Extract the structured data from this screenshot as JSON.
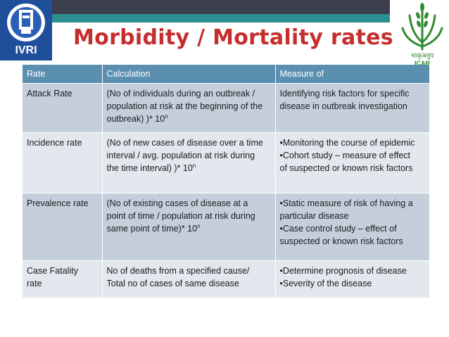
{
  "header": {
    "left_logo_text": "IVRI",
    "right_logo_text": "ICAR",
    "right_logo_hindi": "भाकृअनुप"
  },
  "title": "Morbidity / Mortality rates",
  "table": {
    "columns": [
      "Rate",
      "Calculation",
      "Measure of"
    ],
    "rows": [
      {
        "rate": [
          "Attack Rate"
        ],
        "calculation": [
          "(No of individuals during an outbreak /",
          "population at risk at the beginning of the",
          "outbreak) )* 10"
        ],
        "calc_superscript": "n",
        "measure": [
          "Identifying risk factors for specific",
          "disease in outbreak investigation"
        ]
      },
      {
        "rate": [
          "Incidence rate"
        ],
        "calculation": [
          "(No of new cases of disease over a time",
          "interval / avg. population at risk during",
          "the time interval) )* 10"
        ],
        "calc_superscript": "n",
        "measure": [
          "•Monitoring the course of epidemic",
          "•Cohort study – measure of effect",
          "of suspected or known risk factors"
        ]
      },
      {
        "rate": [
          "Prevalence rate"
        ],
        "calculation": [
          "(No of existing cases of disease at a",
          "point of time / population at risk during",
          "same point of time)* 10"
        ],
        "calc_superscript": "n",
        "measure": [
          "•Static measure of  risk of having a",
          "particular disease",
          "•Case control study – effect of",
          "suspected or known risk factors"
        ]
      },
      {
        "rate": [
          "Case Fatality",
          "rate"
        ],
        "calculation": [
          "No of deaths from a specified cause/",
          "Total no of cases of same disease"
        ],
        "calc_superscript": "",
        "measure": [
          "•Determine prognosis of disease",
          "•Severity of the disease"
        ]
      }
    ]
  },
  "colors": {
    "title": "#c62e2e",
    "header_bg": "#5b8fb0",
    "row_odd": "#c5cfdc",
    "row_even": "#e3e8ef",
    "bar_dark": "#3b3e4d",
    "bar_teal": "#2c8f92"
  }
}
